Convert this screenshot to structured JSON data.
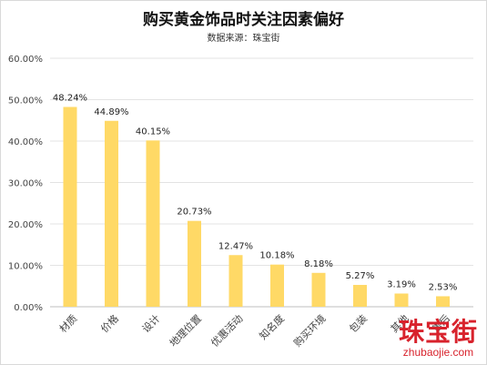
{
  "chart_data": {
    "type": "bar",
    "title": "购买黄金饰品时关注因素偏好",
    "subtitle": "数据来源：珠宝街",
    "categories": [
      "材质",
      "价格",
      "设计",
      "地理位置",
      "优惠活动",
      "知名度",
      "购买环境",
      "包装",
      "其他",
      "售后"
    ],
    "values": [
      48.24,
      44.89,
      40.15,
      20.73,
      12.47,
      10.18,
      8.18,
      5.27,
      3.19,
      2.53
    ],
    "value_labels": [
      "48.24%",
      "44.89%",
      "40.15%",
      "20.73%",
      "12.47%",
      "10.18%",
      "8.18%",
      "5.27%",
      "3.19%",
      "2.53%"
    ],
    "yticks": [
      "0.00%",
      "10.00%",
      "20.00%",
      "30.00%",
      "40.00%",
      "50.00%",
      "60.00%"
    ],
    "ylim": [
      0,
      60
    ],
    "bar_color": "#ffd966",
    "grid": true
  },
  "watermark": {
    "main": "珠宝街",
    "sub": "zhubaojie.com",
    "color": "#d8222c"
  }
}
